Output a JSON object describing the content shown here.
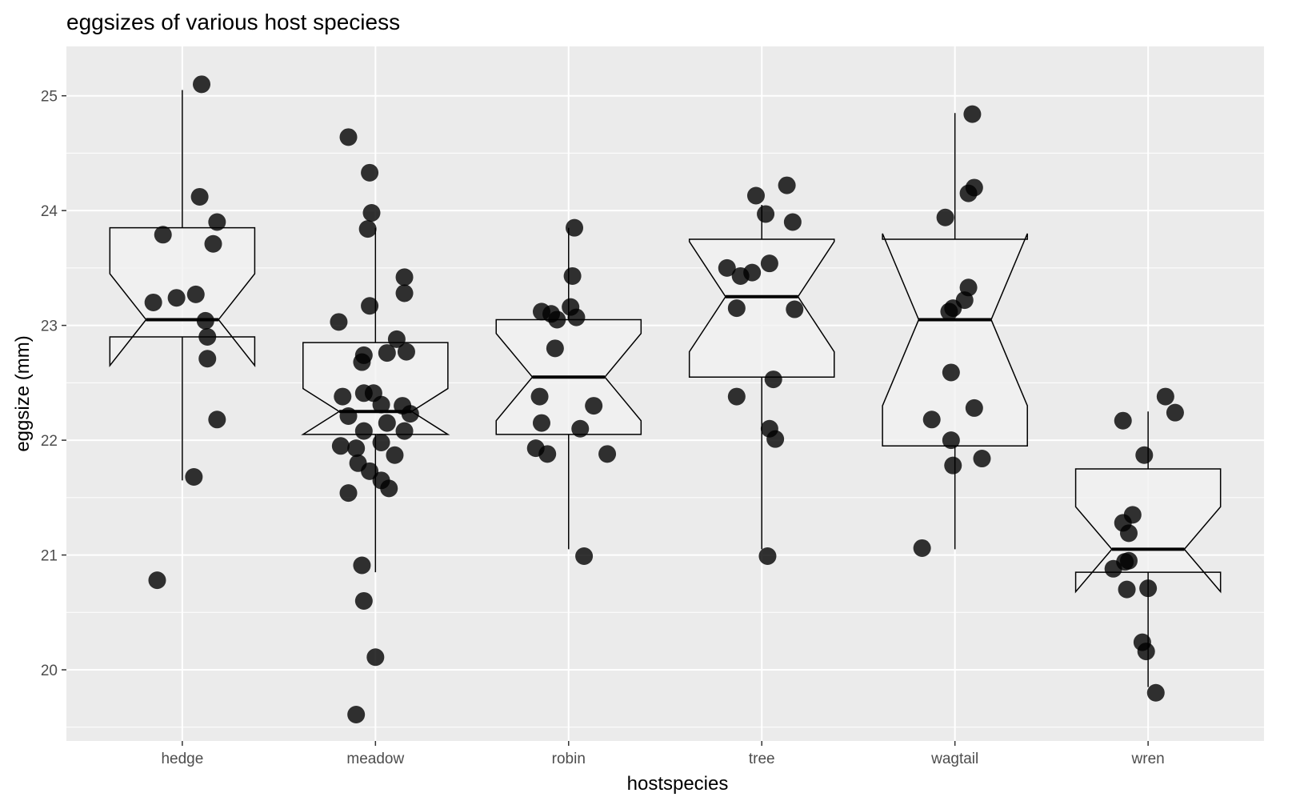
{
  "chart_data": {
    "type": "boxplot",
    "title": "eggsizes of various host speciess",
    "xlabel": "hostspecies",
    "ylabel": "eggsize (mm)",
    "ylim": [
      19.38,
      25.43
    ],
    "yticks": [
      20,
      21,
      22,
      23,
      24,
      25
    ],
    "grid": true,
    "categories": [
      "hedge",
      "meadow",
      "robin",
      "tree",
      "wagtail",
      "wren"
    ],
    "boxes": [
      {
        "category": "hedge",
        "lower_whisker": 21.65,
        "q1": 22.9,
        "median": 23.05,
        "q3": 23.85,
        "upper_whisker": 25.05,
        "notch_low": 22.65,
        "notch_high": 23.45
      },
      {
        "category": "meadow",
        "lower_whisker": 20.85,
        "q1": 22.05,
        "median": 22.25,
        "q3": 22.85,
        "upper_whisker": 23.85,
        "notch_low": 22.05,
        "notch_high": 22.45
      },
      {
        "category": "robin",
        "lower_whisker": 21.05,
        "q1": 22.05,
        "median": 22.55,
        "q3": 23.05,
        "upper_whisker": 23.85,
        "notch_low": 22.17,
        "notch_high": 22.93
      },
      {
        "category": "tree",
        "lower_whisker": 21.05,
        "q1": 22.55,
        "median": 23.25,
        "q3": 23.75,
        "upper_whisker": 24.05,
        "notch_low": 22.77,
        "notch_high": 23.73
      },
      {
        "category": "wagtail",
        "lower_whisker": 21.05,
        "q1": 21.95,
        "median": 23.05,
        "q3": 23.75,
        "upper_whisker": 24.85,
        "notch_low": 22.3,
        "notch_high": 23.8
      },
      {
        "category": "wren",
        "lower_whisker": 19.85,
        "q1": 20.85,
        "median": 21.05,
        "q3": 21.75,
        "upper_whisker": 22.25,
        "notch_low": 20.68,
        "notch_high": 21.42
      }
    ],
    "points": [
      {
        "category": "hedge",
        "values": [
          {
            "jitter": 0.1,
            "y": 25.1
          },
          {
            "jitter": 0.09,
            "y": 24.12
          },
          {
            "jitter": 0.18,
            "y": 23.9
          },
          {
            "jitter": -0.1,
            "y": 23.79
          },
          {
            "jitter": 0.16,
            "y": 23.71
          },
          {
            "jitter": 0.07,
            "y": 23.27
          },
          {
            "jitter": -0.03,
            "y": 23.24
          },
          {
            "jitter": -0.15,
            "y": 23.2
          },
          {
            "jitter": 0.12,
            "y": 23.04
          },
          {
            "jitter": 0.13,
            "y": 22.9
          },
          {
            "jitter": 0.13,
            "y": 22.71
          },
          {
            "jitter": 0.18,
            "y": 22.18
          },
          {
            "jitter": 0.06,
            "y": 21.68
          },
          {
            "jitter": -0.13,
            "y": 20.78
          }
        ]
      },
      {
        "category": "meadow",
        "values": [
          {
            "jitter": -0.14,
            "y": 24.64
          },
          {
            "jitter": -0.03,
            "y": 24.33
          },
          {
            "jitter": -0.02,
            "y": 23.98
          },
          {
            "jitter": -0.04,
            "y": 23.84
          },
          {
            "jitter": 0.15,
            "y": 23.42
          },
          {
            "jitter": 0.15,
            "y": 23.28
          },
          {
            "jitter": -0.03,
            "y": 23.17
          },
          {
            "jitter": -0.19,
            "y": 23.03
          },
          {
            "jitter": 0.11,
            "y": 22.88
          },
          {
            "jitter": 0.16,
            "y": 22.77
          },
          {
            "jitter": 0.06,
            "y": 22.76
          },
          {
            "jitter": -0.06,
            "y": 22.74
          },
          {
            "jitter": -0.07,
            "y": 22.68
          },
          {
            "jitter": -0.06,
            "y": 22.41
          },
          {
            "jitter": -0.01,
            "y": 22.41
          },
          {
            "jitter": -0.17,
            "y": 22.38
          },
          {
            "jitter": 0.03,
            "y": 22.31
          },
          {
            "jitter": 0.14,
            "y": 22.3
          },
          {
            "jitter": 0.18,
            "y": 22.23
          },
          {
            "jitter": -0.14,
            "y": 22.21
          },
          {
            "jitter": 0.06,
            "y": 22.15
          },
          {
            "jitter": 0.15,
            "y": 22.08
          },
          {
            "jitter": -0.06,
            "y": 22.08
          },
          {
            "jitter": 0.03,
            "y": 21.98
          },
          {
            "jitter": -0.18,
            "y": 21.95
          },
          {
            "jitter": -0.1,
            "y": 21.93
          },
          {
            "jitter": 0.1,
            "y": 21.87
          },
          {
            "jitter": -0.09,
            "y": 21.8
          },
          {
            "jitter": -0.03,
            "y": 21.73
          },
          {
            "jitter": 0.03,
            "y": 21.65
          },
          {
            "jitter": 0.07,
            "y": 21.58
          },
          {
            "jitter": -0.14,
            "y": 21.54
          },
          {
            "jitter": -0.07,
            "y": 20.91
          },
          {
            "jitter": -0.06,
            "y": 20.6
          },
          {
            "jitter": -0.0,
            "y": 20.11
          },
          {
            "jitter": -0.1,
            "y": 19.61
          }
        ]
      },
      {
        "category": "robin",
        "values": [
          {
            "jitter": 0.03,
            "y": 23.85
          },
          {
            "jitter": 0.02,
            "y": 23.43
          },
          {
            "jitter": 0.01,
            "y": 23.16
          },
          {
            "jitter": -0.14,
            "y": 23.12
          },
          {
            "jitter": -0.09,
            "y": 23.1
          },
          {
            "jitter": -0.06,
            "y": 23.05
          },
          {
            "jitter": 0.04,
            "y": 23.07
          },
          {
            "jitter": -0.07,
            "y": 22.8
          },
          {
            "jitter": -0.15,
            "y": 22.38
          },
          {
            "jitter": 0.13,
            "y": 22.3
          },
          {
            "jitter": -0.14,
            "y": 22.15
          },
          {
            "jitter": 0.06,
            "y": 22.1
          },
          {
            "jitter": -0.17,
            "y": 21.93
          },
          {
            "jitter": -0.11,
            "y": 21.88
          },
          {
            "jitter": 0.2,
            "y": 21.88
          },
          {
            "jitter": 0.08,
            "y": 20.99
          }
        ]
      },
      {
        "category": "tree",
        "values": [
          {
            "jitter": 0.13,
            "y": 24.22
          },
          {
            "jitter": -0.03,
            "y": 24.13
          },
          {
            "jitter": 0.02,
            "y": 23.97
          },
          {
            "jitter": 0.16,
            "y": 23.9
          },
          {
            "jitter": 0.04,
            "y": 23.54
          },
          {
            "jitter": -0.18,
            "y": 23.5
          },
          {
            "jitter": -0.05,
            "y": 23.46
          },
          {
            "jitter": -0.11,
            "y": 23.43
          },
          {
            "jitter": -0.13,
            "y": 23.15
          },
          {
            "jitter": 0.17,
            "y": 23.14
          },
          {
            "jitter": 0.06,
            "y": 22.53
          },
          {
            "jitter": -0.13,
            "y": 22.38
          },
          {
            "jitter": 0.04,
            "y": 22.1
          },
          {
            "jitter": 0.07,
            "y": 22.01
          },
          {
            "jitter": 0.03,
            "y": 20.99
          }
        ]
      },
      {
        "category": "wagtail",
        "values": [
          {
            "jitter": 0.09,
            "y": 24.84
          },
          {
            "jitter": 0.1,
            "y": 24.2
          },
          {
            "jitter": 0.07,
            "y": 24.15
          },
          {
            "jitter": -0.05,
            "y": 23.94
          },
          {
            "jitter": 0.07,
            "y": 23.33
          },
          {
            "jitter": 0.05,
            "y": 23.22
          },
          {
            "jitter": -0.03,
            "y": 23.12
          },
          {
            "jitter": -0.01,
            "y": 23.15
          },
          {
            "jitter": -0.02,
            "y": 22.59
          },
          {
            "jitter": 0.1,
            "y": 22.28
          },
          {
            "jitter": -0.12,
            "y": 22.18
          },
          {
            "jitter": -0.02,
            "y": 22.0
          },
          {
            "jitter": 0.14,
            "y": 21.84
          },
          {
            "jitter": -0.01,
            "y": 21.78
          },
          {
            "jitter": -0.17,
            "y": 21.06
          }
        ]
      },
      {
        "category": "wren",
        "values": [
          {
            "jitter": 0.09,
            "y": 22.38
          },
          {
            "jitter": 0.14,
            "y": 22.24
          },
          {
            "jitter": -0.13,
            "y": 22.17
          },
          {
            "jitter": -0.02,
            "y": 21.87
          },
          {
            "jitter": -0.08,
            "y": 21.35
          },
          {
            "jitter": -0.13,
            "y": 21.28
          },
          {
            "jitter": -0.1,
            "y": 21.19
          },
          {
            "jitter": -0.1,
            "y": 20.95
          },
          {
            "jitter": -0.12,
            "y": 20.94
          },
          {
            "jitter": -0.18,
            "y": 20.88
          },
          {
            "jitter": -0.11,
            "y": 20.7
          },
          {
            "jitter": 0.0,
            "y": 20.71
          },
          {
            "jitter": -0.03,
            "y": 20.24
          },
          {
            "jitter": -0.01,
            "y": 20.16
          },
          {
            "jitter": 0.04,
            "y": 19.8
          }
        ]
      }
    ],
    "colors": {
      "panel_background": "#ebebeb",
      "grid": "#ffffff",
      "box_outline": "#000000",
      "box_fill": "#f2f2f2",
      "point_fill": "#000000",
      "tick_text": "#4d4d4d"
    }
  }
}
